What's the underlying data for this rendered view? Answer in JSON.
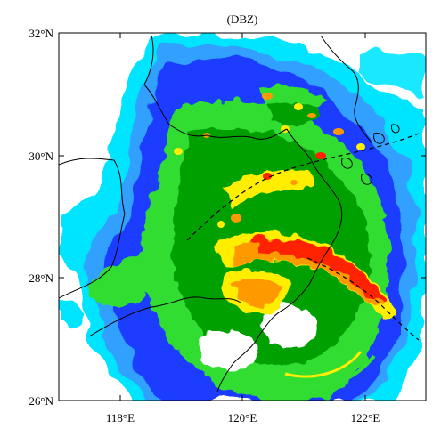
{
  "map": {
    "title": "(DBZ)",
    "lat_labels": [
      {
        "value": 32,
        "text": "32°N"
      },
      {
        "value": 30,
        "text": "30°N"
      },
      {
        "value": 28,
        "text": "28°N"
      },
      {
        "value": 26,
        "text": "26°N"
      }
    ],
    "lon_labels": [
      {
        "value": 118,
        "text": "118°E"
      },
      {
        "value": 120,
        "text": "120°E"
      },
      {
        "value": 122,
        "text": "122°E"
      }
    ],
    "lon_range": [
      117,
      123
    ],
    "lat_range": [
      26,
      32
    ],
    "field": "radar reflectivity",
    "colors": {
      "background": "#ffffff",
      "cyan": "#00e5ff",
      "light_blue": "#33a0ff",
      "blue": "#1a3cff",
      "light_green": "#33dd33",
      "green": "#00a000",
      "yellow": "#ffee00",
      "orange": "#ff9900",
      "red": "#ff2200",
      "border": "#000000"
    }
  }
}
